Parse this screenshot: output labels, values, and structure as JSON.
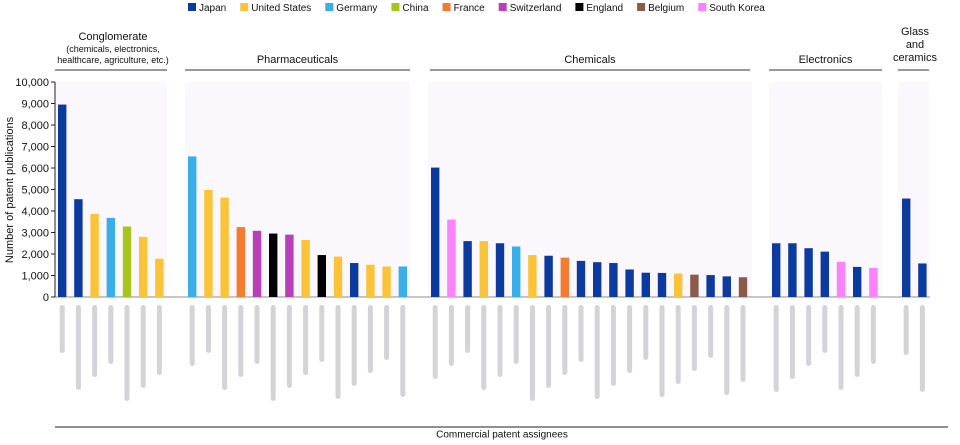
{
  "chart_data": {
    "type": "bar",
    "title": "",
    "xlabel": "Commercial patent assignees",
    "ylabel": "Number of patent publications",
    "ylim": [
      0,
      10000
    ],
    "yticks": [
      "0",
      "1,000",
      "2,000",
      "3,000",
      "4,000",
      "5,000",
      "6,000",
      "7,000",
      "8,000",
      "9,000",
      "10,000"
    ],
    "legend": {
      "placement": "top",
      "entries": [
        {
          "name": "Japan",
          "color": "#0d3a9e"
        },
        {
          "name": "United States",
          "color": "#fbc338"
        },
        {
          "name": "Germany",
          "color": "#3aaee8"
        },
        {
          "name": "China",
          "color": "#a8c51b"
        },
        {
          "name": "France",
          "color": "#f57b30"
        },
        {
          "name": "Switzerland",
          "color": "#b83fb8"
        },
        {
          "name": "England",
          "color": "#000000"
        },
        {
          "name": "Belgium",
          "color": "#8c5a48"
        },
        {
          "name": "South Korea",
          "color": "#fc82fc"
        }
      ]
    },
    "groups": [
      {
        "label": "Conglomerate",
        "sublabel": [
          "(chemicals, electronics,",
          "healthcare, agriculture, etc.)"
        ],
        "bars": [
          {
            "country": "Japan",
            "value": 8950
          },
          {
            "country": "Japan",
            "value": 4550
          },
          {
            "country": "United States",
            "value": 3870
          },
          {
            "country": "Germany",
            "value": 3680
          },
          {
            "country": "China",
            "value": 3280
          },
          {
            "country": "United States",
            "value": 2800
          },
          {
            "country": "United States",
            "value": 1780
          }
        ]
      },
      {
        "label": "Pharmaceuticals",
        "sublabel": [],
        "bars": [
          {
            "country": "Germany",
            "value": 6540
          },
          {
            "country": "United States",
            "value": 4980
          },
          {
            "country": "United States",
            "value": 4620
          },
          {
            "country": "France",
            "value": 3250
          },
          {
            "country": "Switzerland",
            "value": 3080
          },
          {
            "country": "England",
            "value": 2950
          },
          {
            "country": "Switzerland",
            "value": 2900
          },
          {
            "country": "United States",
            "value": 2650
          },
          {
            "country": "England",
            "value": 1950
          },
          {
            "country": "United States",
            "value": 1880
          },
          {
            "country": "Japan",
            "value": 1580
          },
          {
            "country": "United States",
            "value": 1500
          },
          {
            "country": "United States",
            "value": 1420
          },
          {
            "country": "Germany",
            "value": 1420
          }
        ]
      },
      {
        "label": "Chemicals",
        "sublabel": [],
        "bars": [
          {
            "country": "Japan",
            "value": 6020
          },
          {
            "country": "South Korea",
            "value": 3600
          },
          {
            "country": "Japan",
            "value": 2600
          },
          {
            "country": "United States",
            "value": 2600
          },
          {
            "country": "Japan",
            "value": 2500
          },
          {
            "country": "Germany",
            "value": 2350
          },
          {
            "country": "United States",
            "value": 1950
          },
          {
            "country": "Japan",
            "value": 1920
          },
          {
            "country": "France",
            "value": 1830
          },
          {
            "country": "Japan",
            "value": 1680
          },
          {
            "country": "Japan",
            "value": 1620
          },
          {
            "country": "Japan",
            "value": 1580
          },
          {
            "country": "Japan",
            "value": 1280
          },
          {
            "country": "Japan",
            "value": 1130
          },
          {
            "country": "Japan",
            "value": 1120
          },
          {
            "country": "United States",
            "value": 1090
          },
          {
            "country": "Belgium",
            "value": 1040
          },
          {
            "country": "Japan",
            "value": 1020
          },
          {
            "country": "Japan",
            "value": 960
          },
          {
            "country": "Belgium",
            "value": 920
          }
        ]
      },
      {
        "label": "Electronics",
        "sublabel": [],
        "bars": [
          {
            "country": "Japan",
            "value": 2500
          },
          {
            "country": "Japan",
            "value": 2500
          },
          {
            "country": "Japan",
            "value": 2270
          },
          {
            "country": "Japan",
            "value": 2110
          },
          {
            "country": "South Korea",
            "value": 1640
          },
          {
            "country": "Japan",
            "value": 1400
          },
          {
            "country": "South Korea",
            "value": 1350
          }
        ]
      },
      {
        "label": "Glass",
        "sublabel": [
          "and",
          "ceramics"
        ],
        "bars": [
          {
            "country": "Japan",
            "value": 4580
          },
          {
            "country": "Japan",
            "value": 1560
          }
        ]
      }
    ]
  }
}
